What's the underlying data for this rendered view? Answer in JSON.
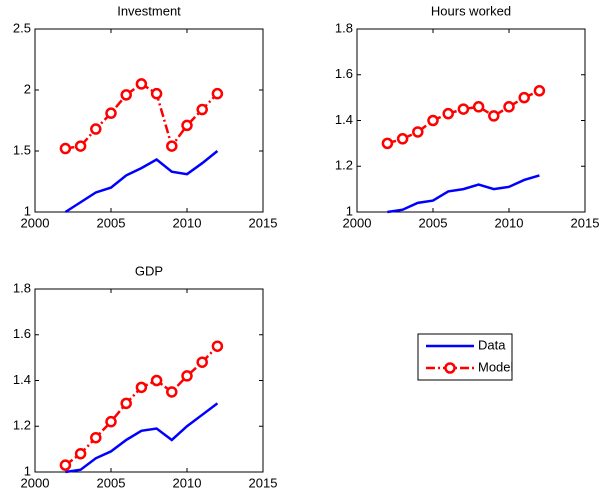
{
  "chart_data": [
    {
      "type": "line",
      "title": "Investment",
      "x": [
        2002,
        2003,
        2004,
        2005,
        2006,
        2007,
        2008,
        2009,
        2010,
        2011,
        2012
      ],
      "xlim": [
        2000,
        2015
      ],
      "xticks": [
        2000,
        2005,
        2010,
        2015
      ],
      "ylim": [
        1,
        2.5
      ],
      "yticks": [
        1,
        1.5,
        2,
        2.5
      ],
      "series": [
        {
          "name": "Data",
          "color": "#0000ff",
          "values": [
            1.0,
            1.08,
            1.16,
            1.2,
            1.3,
            1.36,
            1.43,
            1.33,
            1.31,
            1.4,
            1.5
          ]
        },
        {
          "name": "Model",
          "color": "#ff0000",
          "marker": "circle",
          "dash": "dashdot",
          "values": [
            1.52,
            1.54,
            1.68,
            1.81,
            1.96,
            2.05,
            1.97,
            1.54,
            1.71,
            1.84,
            1.97
          ]
        }
      ]
    },
    {
      "type": "line",
      "title": "Hours worked",
      "x": [
        2002,
        2003,
        2004,
        2005,
        2006,
        2007,
        2008,
        2009,
        2010,
        2011,
        2012
      ],
      "xlim": [
        2000,
        2015
      ],
      "xticks": [
        2000,
        2005,
        2010,
        2015
      ],
      "ylim": [
        1,
        1.8
      ],
      "yticks": [
        1,
        1.2,
        1.4,
        1.6,
        1.8
      ],
      "series": [
        {
          "name": "Data",
          "color": "#0000ff",
          "values": [
            1.0,
            1.01,
            1.04,
            1.05,
            1.09,
            1.1,
            1.12,
            1.1,
            1.11,
            1.14,
            1.16
          ]
        },
        {
          "name": "Model",
          "color": "#ff0000",
          "marker": "circle",
          "dash": "dashdot",
          "values": [
            1.3,
            1.32,
            1.35,
            1.4,
            1.43,
            1.45,
            1.46,
            1.42,
            1.46,
            1.5,
            1.53
          ]
        }
      ]
    },
    {
      "type": "line",
      "title": "GDP",
      "x": [
        2002,
        2003,
        2004,
        2005,
        2006,
        2007,
        2008,
        2009,
        2010,
        2011,
        2012
      ],
      "xlim": [
        2000,
        2015
      ],
      "xticks": [
        2000,
        2005,
        2010,
        2015
      ],
      "ylim": [
        1,
        1.8
      ],
      "yticks": [
        1,
        1.2,
        1.4,
        1.6,
        1.8
      ],
      "legend": "outside-right",
      "series": [
        {
          "name": "Data",
          "color": "#0000ff",
          "values": [
            1.0,
            1.01,
            1.06,
            1.09,
            1.14,
            1.18,
            1.19,
            1.14,
            1.2,
            1.25,
            1.3
          ]
        },
        {
          "name": "Model",
          "color": "#ff0000",
          "marker": "circle",
          "dash": "dashdot",
          "values": [
            1.03,
            1.08,
            1.15,
            1.22,
            1.3,
            1.37,
            1.4,
            1.35,
            1.42,
            1.48,
            1.55
          ]
        }
      ]
    }
  ]
}
